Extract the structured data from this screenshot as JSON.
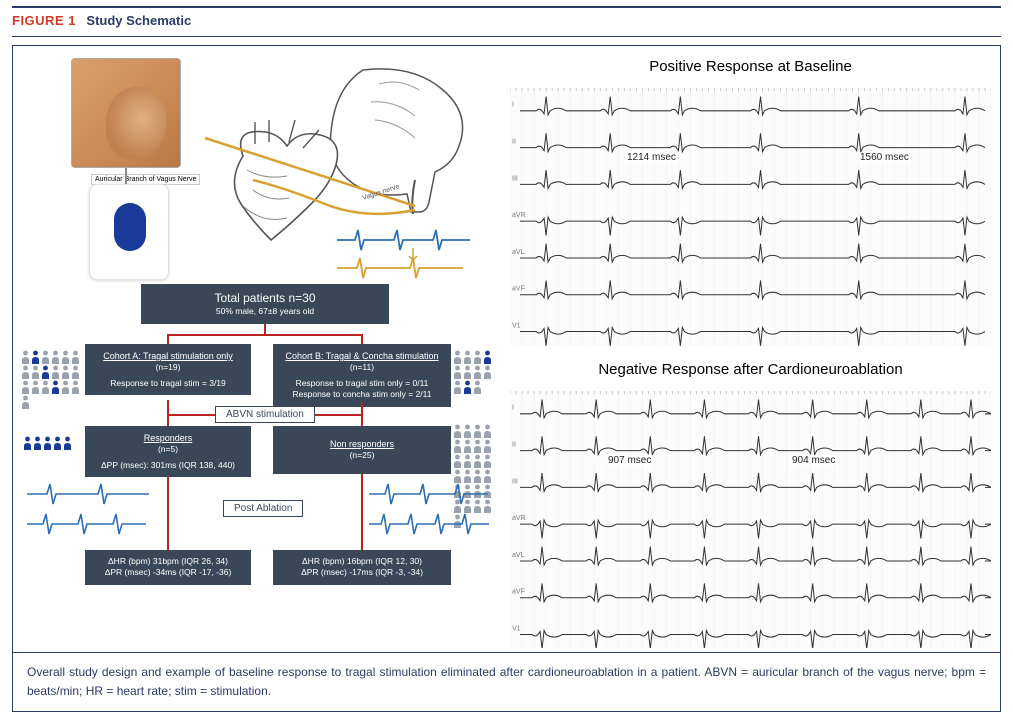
{
  "figure": {
    "label": "FIGURE 1",
    "title": "Study Schematic"
  },
  "caption": "Overall study design and example of baseline response to tragal stimulation eliminated after cardioneuroablation in a patient. ABVN = auricular branch of the vagus nerve; bpm = beats/min; HR = heart rate; stim = stimulation.",
  "schematic": {
    "nerve_label": "Auricular Branch of Vagus Nerve",
    "vagus_label": "Vagus nerve"
  },
  "flowchart": {
    "total": {
      "title": "Total patients n=30",
      "sub": "50% male, 67±8 years old"
    },
    "cohortA": {
      "title": "Cohort A: Tragal stimulation only",
      "n": "(n=19)",
      "detail": "Response to tragal stim = 3/19"
    },
    "cohortB": {
      "title": "Cohort B: Tragal & Concha stimulation",
      "n": "(n=11)",
      "detail1": "Response to tragal stim only = 0/11",
      "detail2": "Response to concha stim only = 2/11"
    },
    "abvn_tag": "ABVN stimulation",
    "responders": {
      "title": "Responders",
      "n": "(n=5)",
      "detail": "ΔPP (msec): 301ms (IQR 138, 440)"
    },
    "nonresponders": {
      "title": "Non responders",
      "n": "(n=25)"
    },
    "post_ablation_tag": "Post Ablation",
    "resultA": {
      "l1": "ΔHR (bpm) 31bpm (IQR 26, 34)",
      "l2": "ΔPR (msec) -34ms (IQR -17, -36)"
    },
    "resultB": {
      "l1": "ΔHR (bpm) 16bpm (IQR 12, 30)",
      "l2": "ΔPR (msec) -17ms (IQR -3, -34)"
    }
  },
  "ecg": {
    "positive": {
      "title": "Positive Response at Baseline",
      "interval1": "1214 msec",
      "interval2": "1560 msec"
    },
    "negative": {
      "title": "Negative Response after Cardioneuroablation",
      "interval1": "907 msec",
      "interval2": "904 msec"
    },
    "leads": [
      "I",
      "II",
      "III",
      "aVR",
      "aVL",
      "aVF",
      "V1"
    ]
  },
  "colors": {
    "navy": "#2b3a67",
    "red": "#d4392a",
    "box": "#3a4758",
    "connector": "#b22222",
    "ecg_line": "#333333",
    "person_blue": "#1a3a9a",
    "person_grey": "#9aa3ad",
    "mini_ecg_blue": "#2b6fb5",
    "mini_ecg_gold": "#d8a030",
    "nerve_gold": "#d8a030"
  }
}
